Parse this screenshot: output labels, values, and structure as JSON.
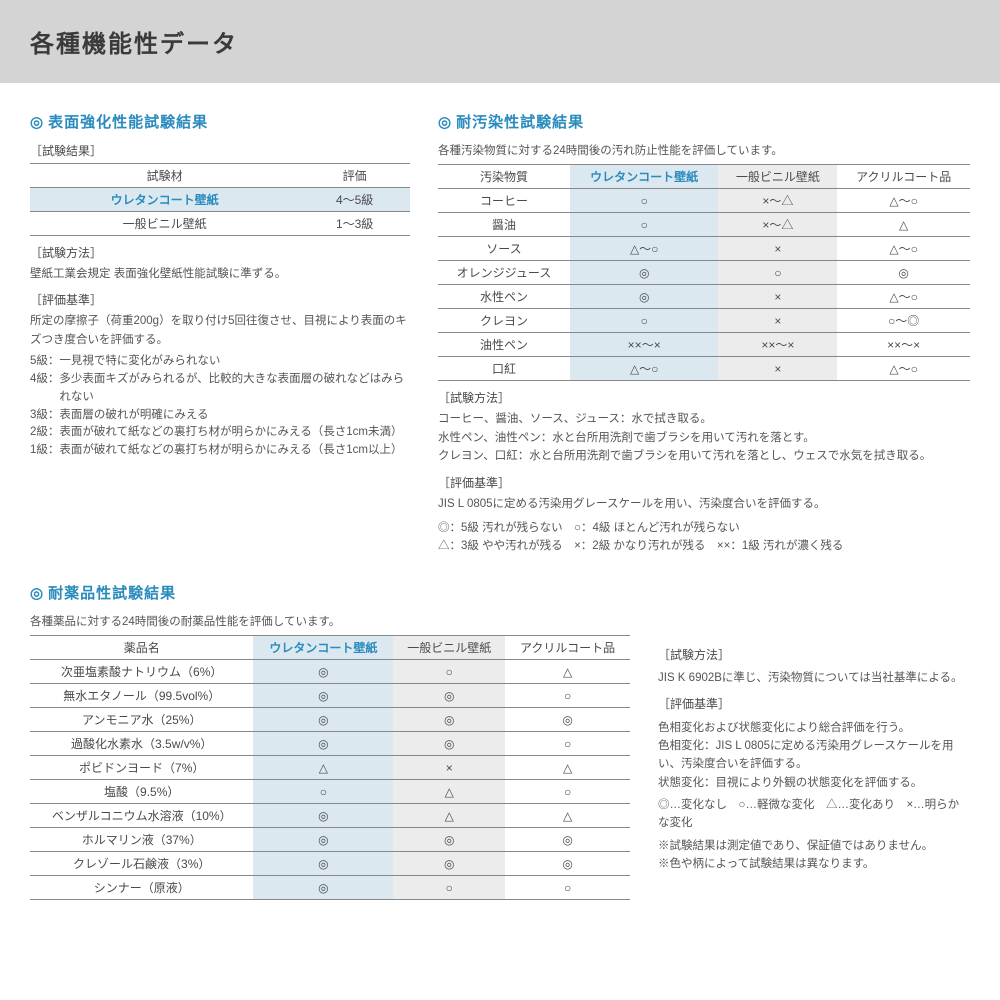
{
  "page_title": "各種機能性データ",
  "colors": {
    "accent": "#2a8bbd",
    "header_bg": "#d4d4d4",
    "highlight_col": "#dce8f0",
    "alt_col": "#ececec",
    "border": "#888888",
    "text": "#4a4a4a"
  },
  "section1": {
    "title": "表面強化性能試験結果",
    "result_label": "［試験結果］",
    "table": {
      "columns": [
        "試験材",
        "評価"
      ],
      "rows": [
        {
          "name": "ウレタンコート壁紙",
          "val": "4～5級",
          "hl": true
        },
        {
          "name": "一般ビニル壁紙",
          "val": "1～3級",
          "hl": false
        }
      ]
    },
    "method_label": "［試験方法］",
    "method_text": "壁紙工業会規定 表面強化壁紙性能試験に準ずる。",
    "criteria_label": "［評価基準］",
    "criteria_text": "所定の摩擦子（荷重200g）を取り付け5回往復させ、目視により表面のキズつき度合いを評価する。",
    "grades": [
      {
        "n": "5級：",
        "t": "一見視で特に変化がみられない"
      },
      {
        "n": "4級：",
        "t": "多少表面キズがみられるが、比較的大きな表面層の破れなどはみられない"
      },
      {
        "n": "3級：",
        "t": "表面層の破れが明確にみえる"
      },
      {
        "n": "2級：",
        "t": "表面が破れて紙などの裏打ち材が明らかにみえる（長さ1cm未満）"
      },
      {
        "n": "1級：",
        "t": "表面が破れて紙などの裏打ち材が明らかにみえる（長さ1cm以上）"
      }
    ]
  },
  "section2": {
    "title": "耐汚染性試験結果",
    "intro": "各種汚染物質に対する24時間後の汚れ防止性能を評価しています。",
    "table": {
      "columns": [
        "汚染物質",
        "ウレタンコート壁紙",
        "一般ビニル壁紙",
        "アクリルコート品"
      ],
      "rows": [
        [
          "コーヒー",
          "○",
          "×～△",
          "△～○"
        ],
        [
          "醤油",
          "○",
          "×～△",
          "△"
        ],
        [
          "ソース",
          "△～○",
          "×",
          "△～○"
        ],
        [
          "オレンジジュース",
          "◎",
          "○",
          "◎"
        ],
        [
          "水性ペン",
          "◎",
          "×",
          "△～○"
        ],
        [
          "クレヨン",
          "○",
          "×",
          "○～◎"
        ],
        [
          "油性ペン",
          "××～×",
          "××～×",
          "××～×"
        ],
        [
          "口紅",
          "△～○",
          "×",
          "△～○"
        ]
      ]
    },
    "method_label": "［試験方法］",
    "method_lines": [
      "コーヒー、醤油、ソース、ジュース：水で拭き取る。",
      "水性ペン、油性ペン：水と台所用洗剤で歯ブラシを用いて汚れを落とす。",
      "クレヨン、口紅：水と台所用洗剤で歯ブラシを用いて汚れを落とし、ウェスで水気を拭き取る。"
    ],
    "criteria_label": "［評価基準］",
    "criteria_text": "JIS L 0805に定める汚染用グレースケールを用い、汚染度合いを評価する。",
    "legend_lines": [
      "◎：5級 汚れが残らない　○：4級 ほとんど汚れが残らない",
      "△：3級 やや汚れが残る　×：2級 かなり汚れが残る　××：1級 汚れが濃く残る"
    ]
  },
  "section3": {
    "title": "耐薬品性試験結果",
    "intro": "各種薬品に対する24時間後の耐薬品性能を評価しています。",
    "table": {
      "columns": [
        "薬品名",
        "ウレタンコート壁紙",
        "一般ビニル壁紙",
        "アクリルコート品"
      ],
      "rows": [
        [
          "次亜塩素酸ナトリウム（6%）",
          "◎",
          "○",
          "△"
        ],
        [
          "無水エタノール（99.5vol%）",
          "◎",
          "◎",
          "○"
        ],
        [
          "アンモニア水（25%）",
          "◎",
          "◎",
          "◎"
        ],
        [
          "過酸化水素水（3.5w/v%）",
          "◎",
          "◎",
          "○"
        ],
        [
          "ポビドンヨード（7%）",
          "△",
          "×",
          "△"
        ],
        [
          "塩酸（9.5%）",
          "○",
          "△",
          "○"
        ],
        [
          "ベンザルコニウム水溶液（10%）",
          "◎",
          "△",
          "△"
        ],
        [
          "ホルマリン液（37%）",
          "◎",
          "◎",
          "◎"
        ],
        [
          "クレゾール石鹸液（3%）",
          "◎",
          "◎",
          "◎"
        ],
        [
          "シンナー（原液）",
          "◎",
          "○",
          "○"
        ]
      ]
    },
    "method_label": "［試験方法］",
    "method_text": "JIS K 6902Bに準じ、汚染物質については当社基準による。",
    "criteria_label": "［評価基準］",
    "criteria_lines": [
      "色相変化および状態変化により総合評価を行う。",
      "色相変化：JIS L 0805に定める汚染用グレースケールを用い、汚染度合いを評価する。",
      "状態変化：目視により外観の状態変化を評価する。"
    ],
    "legend": "◎…変化なし　○…軽微な変化　△…変化あり　×…明らかな変化",
    "notes": [
      "※試験結果は測定値であり、保証値ではありません。",
      "※色や柄によって試験結果は異なります。"
    ]
  }
}
